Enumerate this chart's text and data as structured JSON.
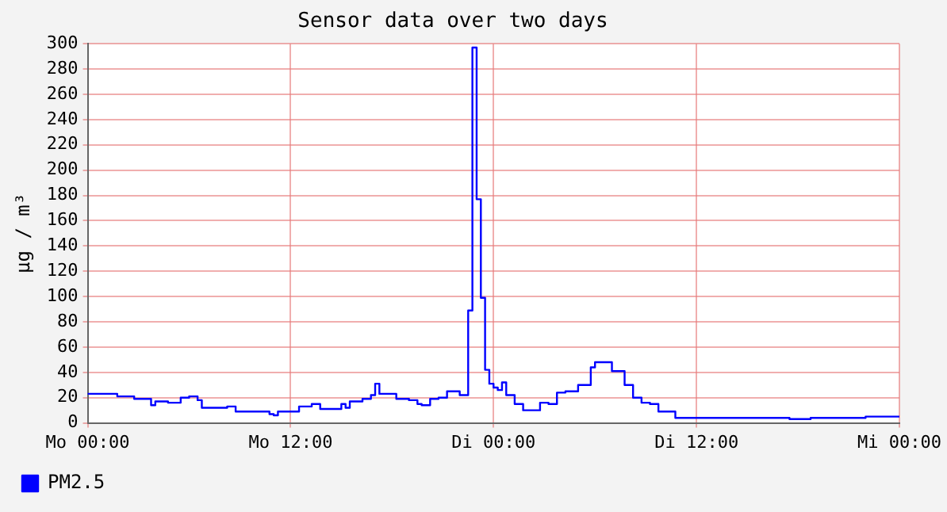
{
  "chart_data": {
    "type": "step",
    "title": "Sensor data over two days",
    "ylabel": "µg / m³",
    "categories": [
      "Mo 00:00",
      null,
      null,
      null,
      null,
      null,
      null,
      null,
      null,
      null,
      null,
      null,
      null,
      null,
      null,
      null,
      null,
      null,
      null,
      null,
      null,
      null,
      null,
      null,
      null,
      null,
      null,
      null,
      null,
      null,
      null,
      null,
      null,
      null,
      null,
      null,
      null,
      null,
      null,
      null,
      null,
      null,
      null,
      null,
      null,
      null,
      null,
      null,
      "Mo 12:00",
      null,
      null,
      null,
      null,
      null,
      null,
      null,
      null,
      null,
      null,
      null,
      null,
      null,
      null,
      null,
      null,
      null,
      null,
      null,
      null,
      null,
      null,
      null,
      null,
      null,
      null,
      null,
      null,
      null,
      null,
      null,
      null,
      null,
      null,
      null,
      null,
      null,
      null,
      null,
      null,
      null,
      null,
      null,
      null,
      null,
      null,
      null,
      "Di 00:00",
      null,
      null,
      null,
      null,
      null,
      null,
      null,
      null,
      null,
      null,
      null,
      null,
      null,
      null,
      null,
      null,
      null,
      null,
      null,
      null,
      null,
      null,
      null,
      null,
      null,
      null,
      null,
      null,
      null,
      null,
      null,
      null,
      null,
      null,
      null,
      null,
      null,
      null,
      null,
      null,
      null,
      null,
      null,
      null,
      null,
      null,
      null,
      "Di 12:00",
      null,
      null,
      null,
      null,
      null,
      null,
      null,
      null,
      null,
      null,
      null,
      null,
      null,
      null,
      null,
      null,
      null,
      null,
      null,
      null,
      null,
      null,
      null,
      null,
      null,
      null,
      null,
      null,
      null,
      null,
      null,
      null,
      null,
      null,
      null,
      null,
      null,
      null,
      null,
      null,
      null,
      null,
      null,
      null,
      null,
      null,
      null,
      "Mi 00:00"
    ],
    "ylim": [
      0,
      300
    ],
    "yticks": [
      0,
      20,
      40,
      60,
      80,
      100,
      120,
      140,
      160,
      180,
      200,
      220,
      240,
      260,
      280,
      300
    ],
    "grid": true,
    "legend": "bottom left",
    "marker": "none",
    "line_style": "solid",
    "series": [
      {
        "name": "PM2.5",
        "color": "#0000ff",
        "values": [
          23,
          23,
          23,
          23,
          23,
          23,
          23,
          23,
          21,
          21,
          21,
          21,
          19,
          19,
          19,
          19,
          14,
          17,
          17,
          17,
          16,
          16,
          16,
          20,
          20,
          21,
          21,
          18,
          12,
          12,
          12,
          12,
          12,
          12,
          13,
          13,
          9,
          9,
          9,
          9,
          9,
          9,
          9,
          9,
          7,
          6,
          9,
          9,
          9,
          9,
          9,
          13,
          13,
          13,
          15,
          15,
          11,
          11,
          11,
          11,
          11,
          15,
          12,
          17,
          17,
          17,
          19,
          19,
          22,
          31,
          23,
          23,
          23,
          23,
          19,
          19,
          19,
          18,
          18,
          15,
          14,
          14,
          19,
          19,
          20,
          20,
          25,
          25,
          25,
          22,
          22,
          89,
          297,
          177,
          99,
          42,
          31,
          28,
          26,
          32,
          22,
          22,
          15,
          15,
          10,
          10,
          10,
          10,
          16,
          16,
          15,
          15,
          24,
          24,
          25,
          25,
          25,
          30,
          30,
          30,
          44,
          48,
          48,
          48,
          48,
          41,
          41,
          41,
          30,
          30,
          20,
          20,
          16,
          16,
          15,
          15,
          9,
          9,
          9,
          9,
          4,
          4,
          4,
          4,
          4,
          4,
          4,
          4,
          4,
          4,
          4,
          4,
          4,
          4,
          4,
          4,
          4,
          4,
          4,
          4,
          4,
          4,
          4,
          4,
          4,
          4,
          4,
          3,
          3,
          3,
          3,
          3,
          4,
          4,
          4,
          4,
          4,
          4,
          4,
          4,
          4,
          4,
          4,
          4,
          4,
          5,
          5,
          5,
          5,
          5,
          5,
          5,
          5
        ]
      }
    ]
  }
}
